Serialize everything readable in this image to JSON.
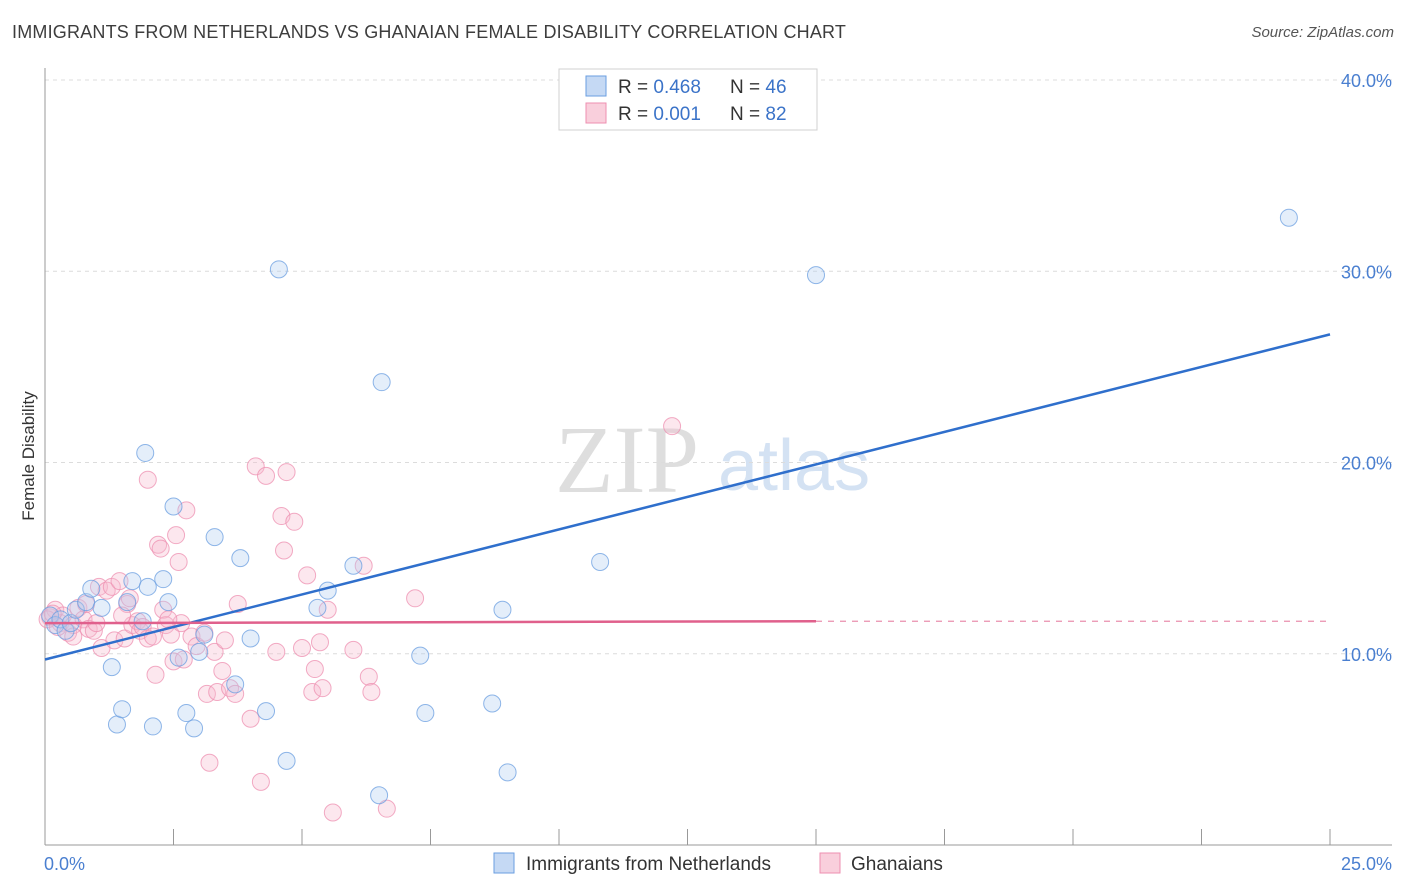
{
  "header": {
    "title": "IMMIGRANTS FROM NETHERLANDS VS GHANAIAN FEMALE DISABILITY CORRELATION CHART",
    "source": "Source: ZipAtlas.com"
  },
  "watermark": {
    "zip": "ZIP",
    "atlas": "atlas"
  },
  "chart_data": {
    "type": "scatter",
    "title": "IMMIGRANTS FROM NETHERLANDS VS GHANAIAN FEMALE DISABILITY CORRELATION CHART",
    "xlabel": "",
    "ylabel": "Female Disability",
    "xlim": [
      0,
      25
    ],
    "ylim": [
      0,
      40
    ],
    "x_tick_labels": [
      "0.0%",
      "25.0%"
    ],
    "y_ticks": [
      10,
      20,
      30,
      40
    ],
    "y_tick_labels": [
      "10.0%",
      "20.0%",
      "30.0%",
      "40.0%"
    ],
    "legend_placement": "top-center",
    "colors": {
      "netherlands": "#6a9ee0",
      "ghanaians": "#ee8fb0",
      "netherlands_line": "#2f6fcc",
      "ghanaians_line": "#e0608c"
    },
    "stats": [
      {
        "r_label": "R = ",
        "r": "0.468",
        "n_label": "N = ",
        "n": "46"
      },
      {
        "r_label": "R = ",
        "r": "0.001",
        "n_label": "N = ",
        "n": "82"
      }
    ],
    "series": [
      {
        "name": "Immigrants from Netherlands",
        "trend": {
          "x": [
            0,
            25
          ],
          "y": [
            9.7,
            26.7
          ]
        },
        "points": [
          [
            0.1,
            12.0
          ],
          [
            0.2,
            11.5
          ],
          [
            0.3,
            11.8
          ],
          [
            0.4,
            11.2
          ],
          [
            0.5,
            11.6
          ],
          [
            0.6,
            12.3
          ],
          [
            0.8,
            12.7
          ],
          [
            0.9,
            13.4
          ],
          [
            1.1,
            12.4
          ],
          [
            1.3,
            9.3
          ],
          [
            1.4,
            6.3
          ],
          [
            1.5,
            7.1
          ],
          [
            1.6,
            12.7
          ],
          [
            1.7,
            13.8
          ],
          [
            1.9,
            11.7
          ],
          [
            1.95,
            20.5
          ],
          [
            2.0,
            13.5
          ],
          [
            2.1,
            6.2
          ],
          [
            2.3,
            13.9
          ],
          [
            2.4,
            12.7
          ],
          [
            2.5,
            17.7
          ],
          [
            2.6,
            9.8
          ],
          [
            2.75,
            6.9
          ],
          [
            2.9,
            6.1
          ],
          [
            3.0,
            10.1
          ],
          [
            3.1,
            11.0
          ],
          [
            3.3,
            16.1
          ],
          [
            3.7,
            8.4
          ],
          [
            3.8,
            15.0
          ],
          [
            4.0,
            10.8
          ],
          [
            4.3,
            7.0
          ],
          [
            4.55,
            30.1
          ],
          [
            4.7,
            4.4
          ],
          [
            5.3,
            12.4
          ],
          [
            5.5,
            13.3
          ],
          [
            6.0,
            14.6
          ],
          [
            6.5,
            2.6
          ],
          [
            6.55,
            24.2
          ],
          [
            7.3,
            9.9
          ],
          [
            7.4,
            6.9
          ],
          [
            8.7,
            7.4
          ],
          [
            8.9,
            12.3
          ],
          [
            9.0,
            3.8
          ],
          [
            10.8,
            14.8
          ],
          [
            15.0,
            29.8
          ],
          [
            24.2,
            32.8
          ]
        ]
      },
      {
        "name": "Ghanaians",
        "trend": {
          "x": [
            0,
            15
          ],
          "y": [
            11.6,
            11.7
          ]
        },
        "trend_dashed": {
          "x": [
            15,
            25
          ],
          "y": [
            11.7,
            11.7
          ]
        },
        "points": [
          [
            0.1,
            11.9
          ],
          [
            0.2,
            12.3
          ],
          [
            0.3,
            11.6
          ],
          [
            0.35,
            12.0
          ],
          [
            0.45,
            11.1
          ],
          [
            0.55,
            11.5
          ],
          [
            0.65,
            12.4
          ],
          [
            0.75,
            11.8
          ],
          [
            0.8,
            12.6
          ],
          [
            0.85,
            11.3
          ],
          [
            0.95,
            11.2
          ],
          [
            1.0,
            11.6
          ],
          [
            1.05,
            13.5
          ],
          [
            1.1,
            10.3
          ],
          [
            1.2,
            13.3
          ],
          [
            1.3,
            13.5
          ],
          [
            1.35,
            10.7
          ],
          [
            1.45,
            13.8
          ],
          [
            1.55,
            10.8
          ],
          [
            1.6,
            12.6
          ],
          [
            1.65,
            12.9
          ],
          [
            1.7,
            11.5
          ],
          [
            1.8,
            11.7
          ],
          [
            1.85,
            11.2
          ],
          [
            1.9,
            11.4
          ],
          [
            2.0,
            10.8
          ],
          [
            2.0,
            19.1
          ],
          [
            2.1,
            10.9
          ],
          [
            2.15,
            8.9
          ],
          [
            2.2,
            15.7
          ],
          [
            2.25,
            15.5
          ],
          [
            2.3,
            12.3
          ],
          [
            2.35,
            11.5
          ],
          [
            2.45,
            11.0
          ],
          [
            2.5,
            9.6
          ],
          [
            2.55,
            16.2
          ],
          [
            2.6,
            14.8
          ],
          [
            2.65,
            11.6
          ],
          [
            2.7,
            9.7
          ],
          [
            2.75,
            17.5
          ],
          [
            2.85,
            10.9
          ],
          [
            2.95,
            10.4
          ],
          [
            3.1,
            11.1
          ],
          [
            3.15,
            7.9
          ],
          [
            3.2,
            4.3
          ],
          [
            3.3,
            10.1
          ],
          [
            3.35,
            8.0
          ],
          [
            3.45,
            9.1
          ],
          [
            3.5,
            10.7
          ],
          [
            3.6,
            8.2
          ],
          [
            3.7,
            7.9
          ],
          [
            3.75,
            12.6
          ],
          [
            4.0,
            6.6
          ],
          [
            4.1,
            19.8
          ],
          [
            4.2,
            3.3
          ],
          [
            4.3,
            19.3
          ],
          [
            4.5,
            10.1
          ],
          [
            4.6,
            17.2
          ],
          [
            4.65,
            15.4
          ],
          [
            4.7,
            19.5
          ],
          [
            4.85,
            16.9
          ],
          [
            5.0,
            10.3
          ],
          [
            5.1,
            14.1
          ],
          [
            5.2,
            8.0
          ],
          [
            5.25,
            9.2
          ],
          [
            5.35,
            10.6
          ],
          [
            5.4,
            8.2
          ],
          [
            5.6,
            1.7
          ],
          [
            5.5,
            12.3
          ],
          [
            6.0,
            10.2
          ],
          [
            6.2,
            14.6
          ],
          [
            6.3,
            8.8
          ],
          [
            6.35,
            8.0
          ],
          [
            6.65,
            1.9
          ],
          [
            7.2,
            12.9
          ],
          [
            12.2,
            21.9
          ],
          [
            0.05,
            11.8
          ],
          [
            0.15,
            12.1
          ],
          [
            0.25,
            11.4
          ],
          [
            0.55,
            10.9
          ],
          [
            1.5,
            12.0
          ],
          [
            2.4,
            11.8
          ]
        ]
      }
    ]
  },
  "bottom_legend": {
    "items": [
      "Immigrants from Netherlands",
      "Ghanaians"
    ]
  }
}
